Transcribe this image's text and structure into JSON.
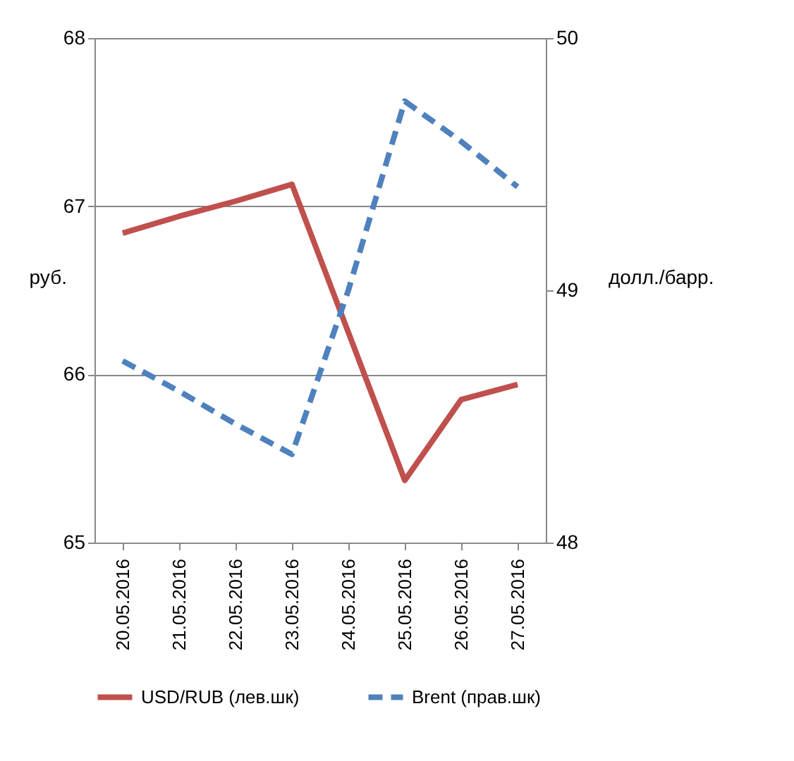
{
  "chart_data": {
    "type": "line",
    "ylabel": "руб.",
    "y2label": "долл./барр.",
    "categories": [
      "20.05.2016",
      "21.05.2016",
      "22.05.2016",
      "23.05.2016",
      "24.05.2016",
      "25.05.2016",
      "26.05.2016",
      "27.05.2016"
    ],
    "series": [
      {
        "name": "USD/RUB (лев.шк)",
        "color": "#c0504d",
        "line_style": "solid",
        "values": [
          66.84,
          66.94,
          67.03,
          67.13,
          66.25,
          65.37,
          65.85,
          65.94
        ]
      },
      {
        "name": "Brent (прав.шк)",
        "color": "#4f81bd",
        "line_style": "dashed",
        "axis": "y2",
        "values": [
          48.72,
          48.6,
          48.47,
          48.35,
          49.0,
          49.75,
          49.59,
          49.41
        ]
      }
    ],
    "ylim": [
      65,
      68
    ],
    "yticks": [
      65,
      66,
      67,
      68
    ],
    "y2lim": [
      48,
      50
    ],
    "y2ticks": [
      48,
      49,
      50
    ],
    "grid": "y",
    "legend": "bottom",
    "marker": "none"
  }
}
